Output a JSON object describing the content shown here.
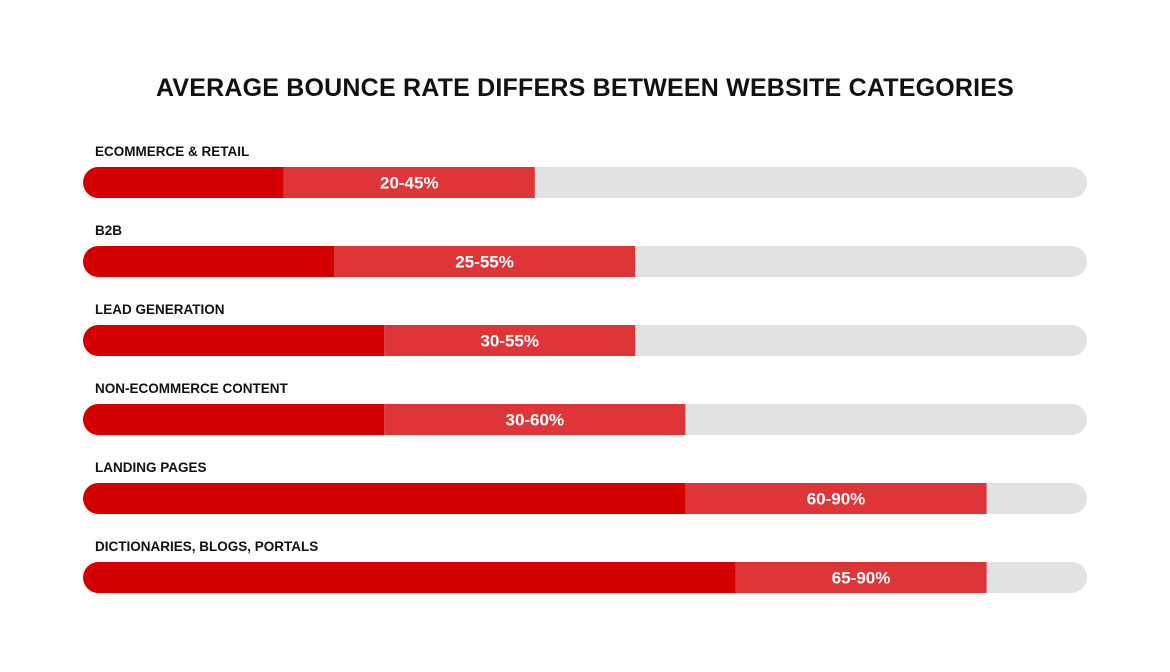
{
  "chart_data": {
    "type": "bar",
    "orientation": "horizontal",
    "title": "AVERAGE BOUNCE RATE DIFFERS BETWEEN WEBSITE CATEGORIES",
    "xlim": [
      0,
      100
    ],
    "unit": "%",
    "grid": false,
    "categories": [
      "ECOMMERCE & RETAIL",
      "B2B",
      "LEAD GENERATION",
      "NON-ECOMMERCE CONTENT",
      "LANDING PAGES",
      "DICTIONARIES, BLOGS, PORTALS"
    ],
    "ranges": [
      [
        20,
        45
      ],
      [
        25,
        55
      ],
      [
        30,
        55
      ],
      [
        30,
        60
      ],
      [
        60,
        90
      ],
      [
        65,
        90
      ]
    ],
    "range_labels": [
      "20-45%",
      "25-55%",
      "30-55%",
      "30-60%",
      "60-90%",
      "65-90%"
    ],
    "colors": {
      "low": "#d40000",
      "range": "#e03538",
      "track": "#e2e2e2"
    }
  }
}
